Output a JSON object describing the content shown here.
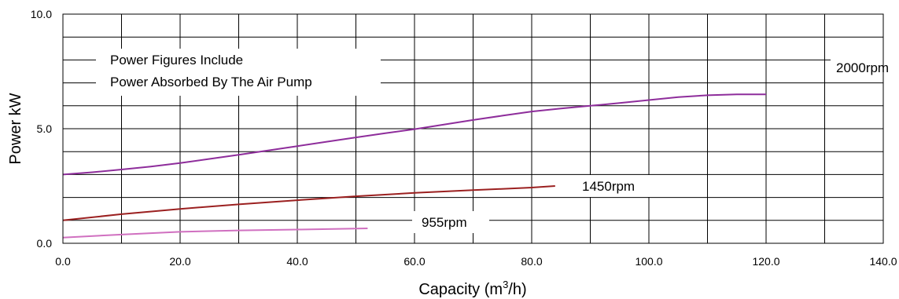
{
  "chart_data": {
    "type": "line",
    "title": "",
    "xlabel": "Capacity (m",
    "xlabel_sup": "3",
    "xlabel_end": "/h)",
    "ylabel": "Power kW",
    "xlim": [
      0,
      140
    ],
    "ylim": [
      0,
      10
    ],
    "x_ticks": [
      0,
      20,
      40,
      60,
      80,
      100,
      120,
      140
    ],
    "x_tick_labels": [
      "0.0",
      "20.0",
      "40.0",
      "60.0",
      "80.0",
      "100.0",
      "120.0",
      "140.0"
    ],
    "y_ticks": [
      0,
      5,
      10
    ],
    "y_tick_labels": [
      "0.0",
      "5.0",
      "10.0"
    ],
    "grid": true,
    "x_grid_step": 10,
    "y_grid_step": 1,
    "legend": "none",
    "annotation": [
      "Power Figures Include",
      "Power Absorbed By The Air Pump"
    ],
    "series": [
      {
        "label": "2000rpm",
        "color": "#8e2d9b",
        "x": [
          0,
          5,
          10,
          15,
          20,
          25,
          30,
          35,
          40,
          45,
          50,
          55,
          60,
          65,
          70,
          75,
          80,
          85,
          90,
          95,
          100,
          105,
          110,
          115,
          120
        ],
        "y": [
          3.0,
          3.1,
          3.22,
          3.35,
          3.5,
          3.68,
          3.86,
          4.05,
          4.24,
          4.43,
          4.62,
          4.8,
          4.98,
          5.18,
          5.38,
          5.57,
          5.75,
          5.88,
          6.0,
          6.12,
          6.25,
          6.38,
          6.46,
          6.5,
          6.5
        ]
      },
      {
        "label": "1450rpm",
        "color": "#9b2020",
        "x": [
          0,
          10,
          20,
          30,
          40,
          50,
          60,
          70,
          80,
          84
        ],
        "y": [
          1.0,
          1.27,
          1.5,
          1.7,
          1.88,
          2.05,
          2.2,
          2.32,
          2.43,
          2.5
        ]
      },
      {
        "label": "955rpm",
        "color": "#d070c0",
        "x": [
          0,
          10,
          20,
          30,
          40,
          52
        ],
        "y": [
          0.25,
          0.38,
          0.5,
          0.56,
          0.6,
          0.65
        ]
      }
    ]
  }
}
